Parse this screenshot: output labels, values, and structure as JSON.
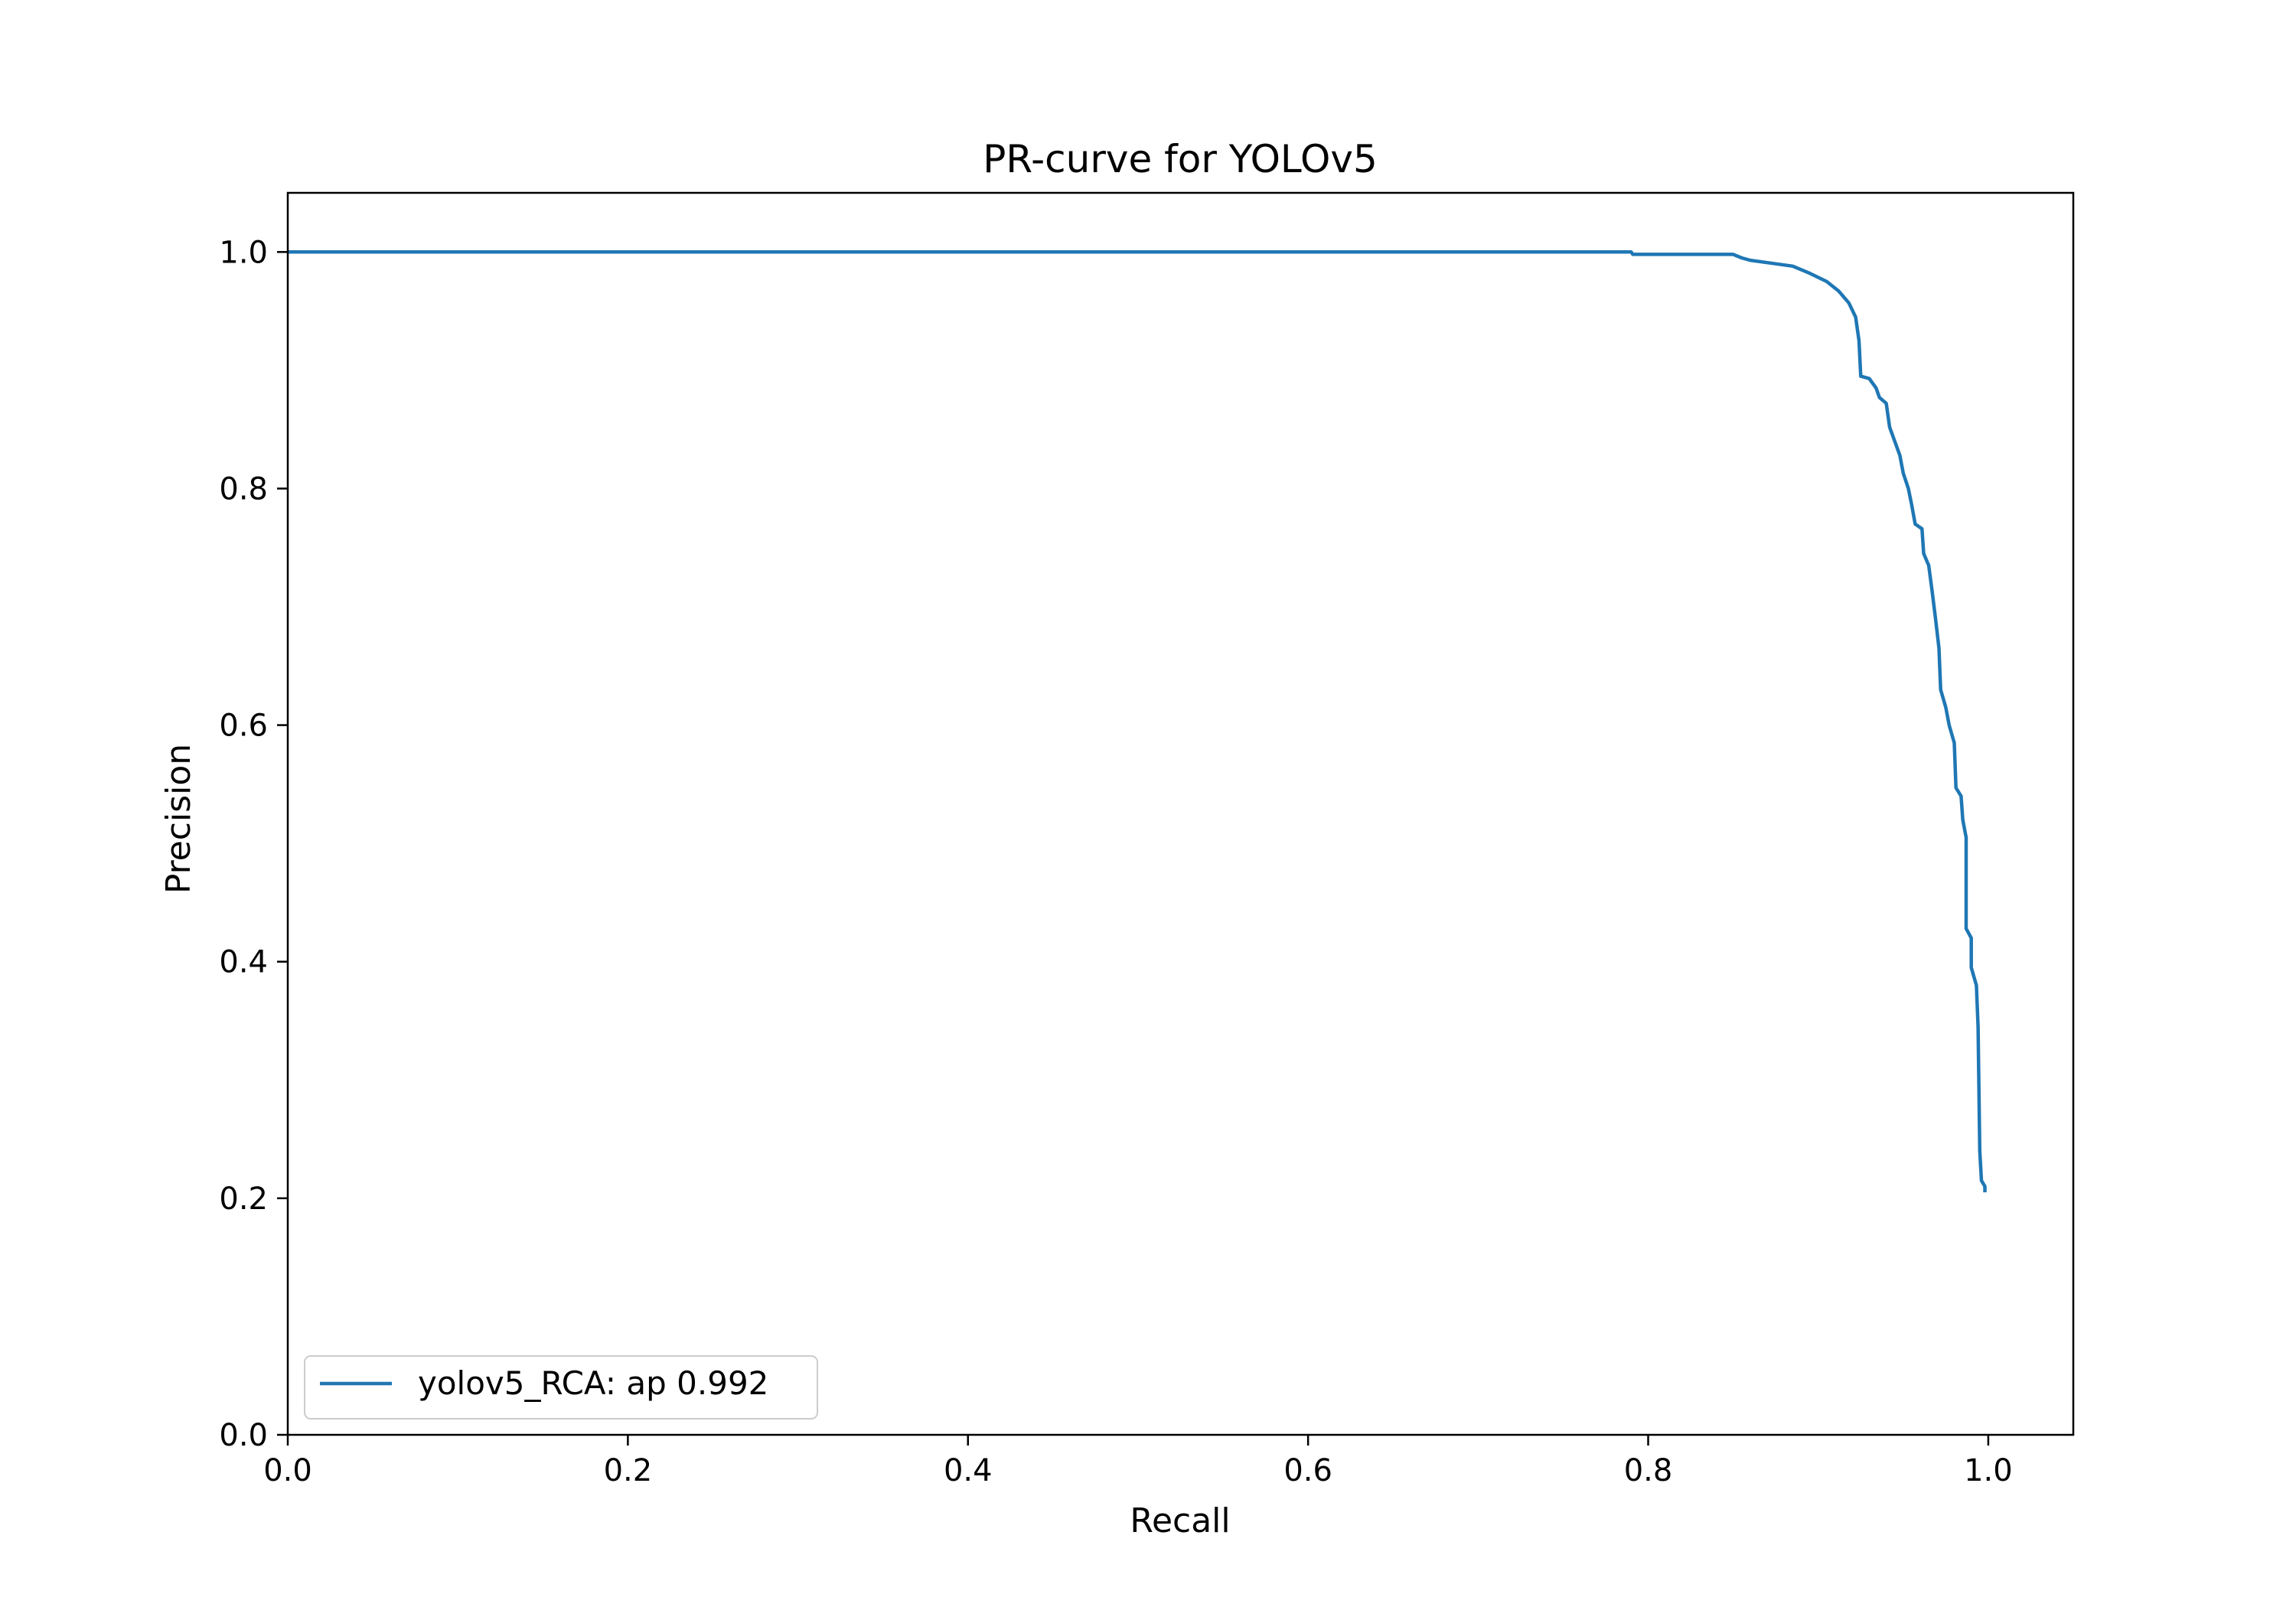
{
  "chart_data": {
    "type": "line",
    "title": "PR-curve for YOLOv5",
    "xlabel": "Recall",
    "ylabel": "Precision",
    "xlim": [
      0.0,
      1.05
    ],
    "ylim": [
      0.0,
      1.05
    ],
    "xticks": [
      "0.0",
      "0.2",
      "0.4",
      "0.6",
      "0.8",
      "1.0"
    ],
    "yticks": [
      "0.0",
      "0.2",
      "0.4",
      "0.6",
      "0.8",
      "1.0"
    ],
    "grid": false,
    "legend_position": "lower-left",
    "series": [
      {
        "name": "yolov5_RCA: ap 0.992",
        "color": "#1f77b4",
        "points": [
          [
            0.0,
            1.0
          ],
          [
            0.79,
            1.0
          ],
          [
            0.791,
            0.998
          ],
          [
            0.85,
            0.998
          ],
          [
            0.855,
            0.995
          ],
          [
            0.86,
            0.993
          ],
          [
            0.87,
            0.991
          ],
          [
            0.885,
            0.988
          ],
          [
            0.895,
            0.982
          ],
          [
            0.905,
            0.975
          ],
          [
            0.912,
            0.967
          ],
          [
            0.918,
            0.957
          ],
          [
            0.922,
            0.945
          ],
          [
            0.924,
            0.925
          ],
          [
            0.925,
            0.895
          ],
          [
            0.93,
            0.893
          ],
          [
            0.934,
            0.885
          ],
          [
            0.936,
            0.877
          ],
          [
            0.94,
            0.872
          ],
          [
            0.942,
            0.852
          ],
          [
            0.945,
            0.84
          ],
          [
            0.948,
            0.828
          ],
          [
            0.95,
            0.813
          ],
          [
            0.953,
            0.8
          ],
          [
            0.955,
            0.786
          ],
          [
            0.957,
            0.77
          ],
          [
            0.961,
            0.766
          ],
          [
            0.962,
            0.745
          ],
          [
            0.965,
            0.735
          ],
          [
            0.967,
            0.713
          ],
          [
            0.969,
            0.69
          ],
          [
            0.971,
            0.665
          ],
          [
            0.972,
            0.63
          ],
          [
            0.975,
            0.615
          ],
          [
            0.977,
            0.6
          ],
          [
            0.98,
            0.585
          ],
          [
            0.981,
            0.547
          ],
          [
            0.984,
            0.54
          ],
          [
            0.985,
            0.52
          ],
          [
            0.987,
            0.505
          ],
          [
            0.987,
            0.428
          ],
          [
            0.99,
            0.42
          ],
          [
            0.99,
            0.395
          ],
          [
            0.993,
            0.38
          ],
          [
            0.994,
            0.345
          ],
          [
            0.995,
            0.24
          ],
          [
            0.996,
            0.215
          ],
          [
            0.998,
            0.21
          ],
          [
            0.998,
            0.205
          ]
        ]
      }
    ]
  }
}
